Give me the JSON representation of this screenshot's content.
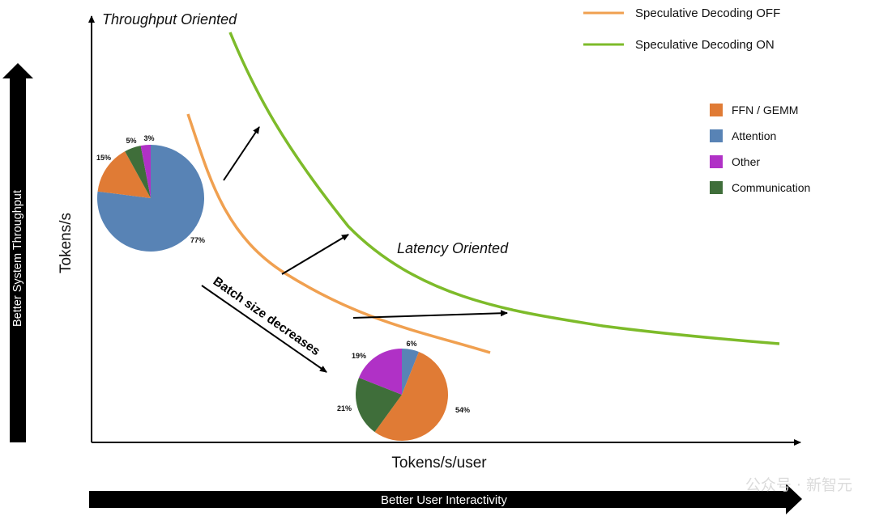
{
  "y_axis_label": "Tokens/s",
  "x_axis_label": "Tokens/s/user",
  "y_arrow_label": "Better System Throughput",
  "x_arrow_label": "Better User Interactivity",
  "region_labels": {
    "throughput": "Throughput Oriented",
    "latency": "Latency Oriented"
  },
  "batch_label": "Batch size decreases",
  "watermark": "公众号 · 新智元",
  "legend_lines": [
    {
      "label": "Speculative Decoding OFF",
      "color": "#f0a050"
    },
    {
      "label": "Speculative Decoding ON",
      "color": "#7dbb2a"
    }
  ],
  "legend_components": [
    {
      "label": "FFN / GEMM",
      "color": "#e07b35"
    },
    {
      "label": "Attention",
      "color": "#5883b5"
    },
    {
      "label": "Other",
      "color": "#b031c6"
    },
    {
      "label": "Communication",
      "color": "#3f6e3a"
    }
  ],
  "pie_high_throughput": [
    {
      "component": "Attention",
      "value": 77,
      "label": "77%"
    },
    {
      "component": "FFN / GEMM",
      "value": 15,
      "label": "15%"
    },
    {
      "component": "Communication",
      "value": 5,
      "label": "5%"
    },
    {
      "component": "Other",
      "value": 3,
      "label": "3%"
    }
  ],
  "pie_low_latency": [
    {
      "component": "Attention",
      "value": 6,
      "label": "6%"
    },
    {
      "component": "FFN / GEMM",
      "value": 54,
      "label": "54%"
    },
    {
      "component": "Communication",
      "value": 21,
      "label": "21%"
    },
    {
      "component": "Other",
      "value": 19,
      "label": "19%"
    }
  ]
}
